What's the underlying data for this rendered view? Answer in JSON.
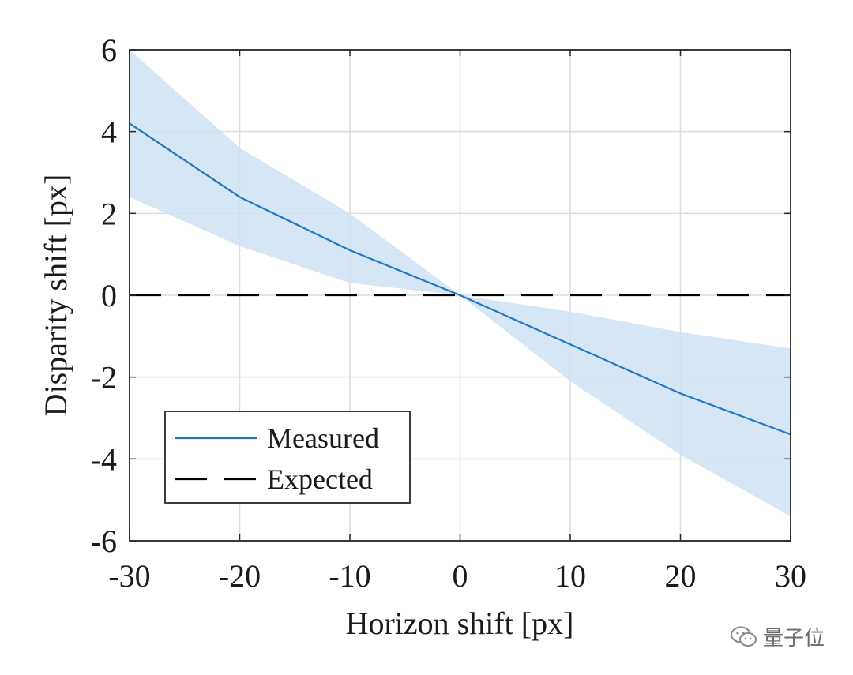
{
  "chart_data": {
    "type": "line",
    "title": "",
    "xlabel": "Horizon shift [px]",
    "ylabel": "Disparity shift [px]",
    "xlim": [
      -30,
      30
    ],
    "ylim": [
      -6,
      6
    ],
    "xticks": [
      -30,
      -20,
      -10,
      0,
      10,
      20,
      30
    ],
    "yticks": [
      -6,
      -4,
      -2,
      0,
      2,
      4,
      6
    ],
    "xtick_labels": [
      "-30",
      "-20",
      "-10",
      "0",
      "10",
      "20",
      "30"
    ],
    "ytick_labels": [
      "-6",
      "-4",
      "-2",
      "0",
      "2",
      "4",
      "6"
    ],
    "grid": true,
    "legend_position": "bottom-left",
    "series": [
      {
        "name": "Measured",
        "style": "solid",
        "color": "#1f77c4",
        "x": [
          -30,
          -20,
          -10,
          0,
          10,
          20,
          30
        ],
        "y": [
          4.2,
          2.4,
          1.1,
          0.0,
          -1.2,
          -2.4,
          -3.4
        ]
      },
      {
        "name": "Expected",
        "style": "dashed",
        "color": "#000000",
        "x": [
          -30,
          30
        ],
        "y": [
          0,
          0
        ]
      }
    ],
    "band": {
      "name": "Measured spread",
      "color": "#cfe2f3",
      "x": [
        -30,
        -20,
        -10,
        0,
        10,
        20,
        30
      ],
      "upper": [
        6.0,
        3.6,
        2.0,
        0.0,
        -0.4,
        -0.9,
        -1.3
      ],
      "lower": [
        2.4,
        1.2,
        0.3,
        0.0,
        -2.1,
        -3.9,
        -5.4
      ]
    }
  },
  "watermark": {
    "text": "量子位",
    "icon": "wechat-icon"
  }
}
